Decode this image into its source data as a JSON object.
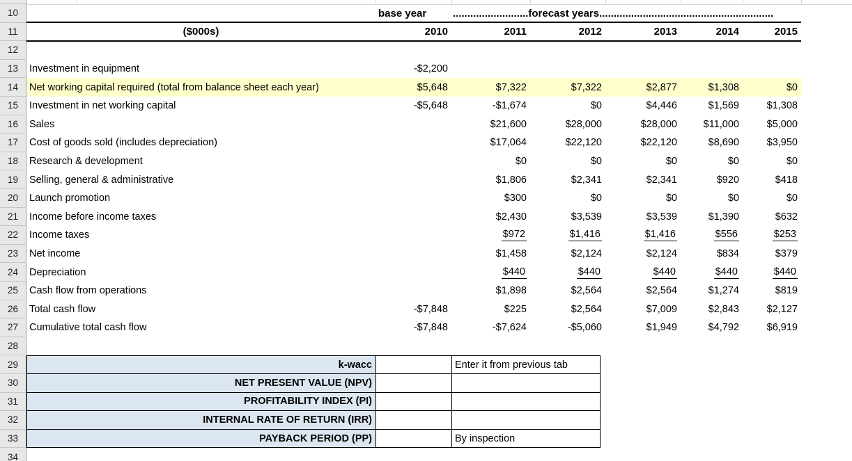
{
  "sheet": {
    "row_numbers": [
      "10",
      "11",
      "12",
      "13",
      "14",
      "15",
      "16",
      "17",
      "18",
      "19",
      "20",
      "21",
      "22",
      "23",
      "24",
      "25",
      "26",
      "27",
      "28",
      "29",
      "30",
      "31",
      "32",
      "33",
      "34"
    ]
  },
  "header": {
    "base_year_label": "base year",
    "forecast_label": "..........................forecast years............................................................",
    "units_label": "($000s)",
    "years": [
      "2010",
      "2011",
      "2012",
      "2013",
      "2014",
      "2015"
    ]
  },
  "table": {
    "rows": [
      {
        "row": "13",
        "label": "Investment in equipment",
        "values": [
          "-$2,200",
          "",
          "",
          "",
          "",
          ""
        ],
        "highlight": false,
        "underline": false
      },
      {
        "row": "14",
        "label": "Net working capital required (total from balance sheet each year)",
        "values": [
          "$5,648",
          "$7,322",
          "$7,322",
          "$2,877",
          "$1,308",
          "$0"
        ],
        "highlight": true,
        "underline": false
      },
      {
        "row": "15",
        "label": "Investment in net working capital",
        "values": [
          "-$5,648",
          "-$1,674",
          "$0",
          "$4,446",
          "$1,569",
          "$1,308"
        ],
        "highlight": false,
        "underline": false
      },
      {
        "row": "16",
        "label": "Sales",
        "values": [
          "",
          "$21,600",
          "$28,000",
          "$28,000",
          "$11,000",
          "$5,000"
        ],
        "highlight": false,
        "underline": false
      },
      {
        "row": "17",
        "label": "Cost of goods sold (includes depreciation)",
        "values": [
          "",
          "$17,064",
          "$22,120",
          "$22,120",
          "$8,690",
          "$3,950"
        ],
        "highlight": false,
        "underline": false
      },
      {
        "row": "18",
        "label": "Research & development",
        "values": [
          "",
          "$0",
          "$0",
          "$0",
          "$0",
          "$0"
        ],
        "highlight": false,
        "underline": false
      },
      {
        "row": "19",
        "label": "Selling, general & administrative",
        "values": [
          "",
          "$1,806",
          "$2,341",
          "$2,341",
          "$920",
          "$418"
        ],
        "highlight": false,
        "underline": false
      },
      {
        "row": "20",
        "label": "Launch promotion",
        "values": [
          "",
          "$300",
          "$0",
          "$0",
          "$0",
          "$0"
        ],
        "highlight": false,
        "underline": false
      },
      {
        "row": "21",
        "label": "Income before income taxes",
        "values": [
          "",
          "$2,430",
          "$3,539",
          "$3,539",
          "$1,390",
          "$632"
        ],
        "highlight": false,
        "underline": false
      },
      {
        "row": "22",
        "label": "Income taxes",
        "values": [
          "",
          "$972",
          "$1,416",
          "$1,416",
          "$556",
          "$253"
        ],
        "highlight": false,
        "underline": true
      },
      {
        "row": "23",
        "label": "Net income",
        "values": [
          "",
          "$1,458",
          "$2,124",
          "$2,124",
          "$834",
          "$379"
        ],
        "highlight": false,
        "underline": false
      },
      {
        "row": "24",
        "label": "Depreciation",
        "values": [
          "",
          "$440",
          "$440",
          "$440",
          "$440",
          "$440"
        ],
        "highlight": false,
        "underline": true
      },
      {
        "row": "25",
        "label": "Cash flow from operations",
        "values": [
          "",
          "$1,898",
          "$2,564",
          "$2,564",
          "$1,274",
          "$819"
        ],
        "highlight": false,
        "underline": false
      },
      {
        "row": "26",
        "label": "Total cash flow",
        "values": [
          "-$7,848",
          "$225",
          "$2,564",
          "$7,009",
          "$2,843",
          "$2,127"
        ],
        "highlight": false,
        "underline": false
      },
      {
        "row": "27",
        "label": "Cumulative total cash flow",
        "values": [
          "-$7,848",
          "-$7,624",
          "-$5,060",
          "$1,949",
          "$4,792",
          "$6,919"
        ],
        "highlight": false,
        "underline": false
      }
    ]
  },
  "summary": {
    "rows": [
      {
        "row": "29",
        "label": "k-wacc",
        "value": "",
        "note": "Enter it from previous tab"
      },
      {
        "row": "30",
        "label": "NET PRESENT VALUE (NPV)",
        "value": "",
        "note": ""
      },
      {
        "row": "31",
        "label": "PROFITABILITY INDEX (PI)",
        "value": "",
        "note": ""
      },
      {
        "row": "32",
        "label": "INTERNAL RATE OF RETURN (IRR)",
        "value": "",
        "note": ""
      },
      {
        "row": "33",
        "label": "PAYBACK PERIOD (PP)",
        "value": "",
        "note": "By inspection"
      }
    ]
  },
  "colors": {
    "highlight_yellow": "#FFFFCC",
    "summary_blue": "#DCE6F1",
    "row_header_bg": "#E7E7E7",
    "grid_line": "#D6D6D6",
    "rule_black": "#000000"
  }
}
